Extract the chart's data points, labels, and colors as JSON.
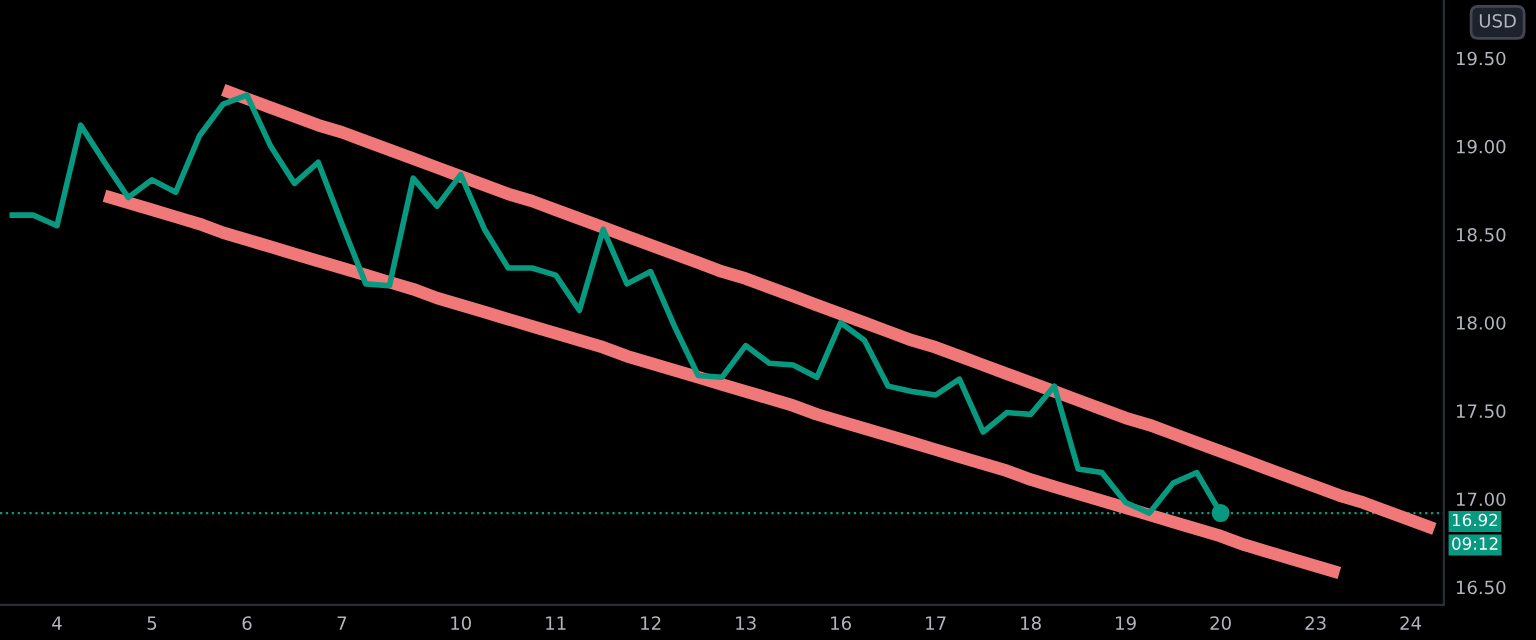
{
  "chart_data": {
    "type": "line",
    "categories": [
      null,
      null,
      "4",
      null,
      null,
      null,
      "5",
      null,
      null,
      null,
      "6",
      null,
      null,
      null,
      "7",
      null,
      null,
      null,
      null,
      "10",
      null,
      null,
      null,
      "11",
      null,
      null,
      null,
      "12",
      null,
      null,
      null,
      "13",
      null,
      null,
      null,
      "16",
      null,
      null,
      null,
      "17",
      null,
      null,
      null,
      "18",
      null,
      null,
      null,
      "19",
      null,
      null,
      null,
      "20",
      null,
      null,
      null,
      "23",
      null,
      null,
      null,
      "24",
      null
    ],
    "ylim": [
      16.4,
      19.83
    ],
    "yticks": [
      {
        "value": 16.5,
        "label": "16.50"
      },
      {
        "value": 17.0,
        "label": "17.00"
      },
      {
        "value": 17.5,
        "label": "17.50"
      },
      {
        "value": 18.0,
        "label": "18.00"
      },
      {
        "value": 18.5,
        "label": "18.50"
      },
      {
        "value": 19.0,
        "label": "19.00"
      },
      {
        "value": 19.5,
        "label": "19.50"
      }
    ],
    "grid": false,
    "marker": "none",
    "line_style": "solid",
    "series": [
      {
        "color": "#089981",
        "values": [
          18.61,
          18.61,
          18.55,
          19.12,
          18.91,
          18.71,
          18.81,
          18.74,
          19.06,
          19.24,
          19.29,
          19.0,
          18.79,
          18.91,
          18.56,
          18.22,
          18.21,
          18.82,
          18.66,
          18.84,
          18.53,
          18.31,
          18.31,
          18.27,
          18.07,
          18.53,
          18.22,
          18.29,
          17.98,
          17.7,
          17.69,
          17.87,
          17.77,
          17.76,
          17.69,
          18.0,
          17.9,
          17.64,
          17.61,
          17.59,
          17.68,
          17.38,
          17.49,
          17.48,
          17.64,
          17.17,
          17.15,
          16.98,
          16.92,
          17.09,
          17.15,
          16.92,
          null,
          null,
          null,
          null,
          null,
          null,
          null,
          null,
          null
        ]
      },
      {
        "type": "scatter",
        "marker": "circle",
        "color": "#089981",
        "x": [
          "20"
        ],
        "values": [
          16.92
        ]
      },
      {
        "color": "#f07878",
        "values": [
          null,
          null,
          null,
          null,
          null,
          null,
          null,
          null,
          null,
          19.32,
          19.27,
          19.22,
          19.17,
          19.12,
          19.08,
          19.03,
          18.98,
          18.93,
          18.88,
          18.83,
          18.78,
          18.73,
          18.69,
          18.64,
          18.59,
          18.54,
          18.49,
          18.44,
          18.39,
          18.34,
          18.29,
          18.25,
          18.2,
          18.15,
          18.1,
          18.05,
          18.0,
          17.95,
          17.9,
          17.86,
          17.81,
          17.76,
          17.71,
          17.66,
          17.61,
          17.56,
          17.51,
          17.46,
          17.42,
          17.37,
          17.32,
          17.27,
          17.22,
          17.17,
          17.12,
          17.07,
          17.02,
          16.98,
          16.93,
          16.88,
          16.83
        ]
      },
      {
        "color": "#f07878",
        "values": [
          null,
          null,
          null,
          null,
          18.72,
          18.68,
          18.64,
          18.6,
          18.56,
          18.51,
          18.47,
          18.43,
          18.39,
          18.35,
          18.31,
          18.27,
          18.23,
          18.19,
          18.14,
          18.1,
          18.06,
          18.02,
          17.98,
          17.94,
          17.9,
          17.86,
          17.81,
          17.77,
          17.73,
          17.69,
          17.65,
          17.61,
          17.57,
          17.53,
          17.48,
          17.44,
          17.4,
          17.36,
          17.32,
          17.28,
          17.24,
          17.2,
          17.16,
          17.11,
          17.07,
          17.03,
          16.99,
          16.95,
          16.91,
          16.87,
          16.83,
          16.79,
          16.74,
          16.7,
          16.66,
          16.62,
          16.58,
          null,
          null,
          null,
          null
        ]
      }
    ],
    "ref_lines": [
      {
        "axis": "y",
        "value": 16.92,
        "label": "16.92",
        "color": "#089981",
        "line_style": "dotted"
      }
    ],
    "annotations": [
      "USD",
      "09:12"
    ]
  }
}
